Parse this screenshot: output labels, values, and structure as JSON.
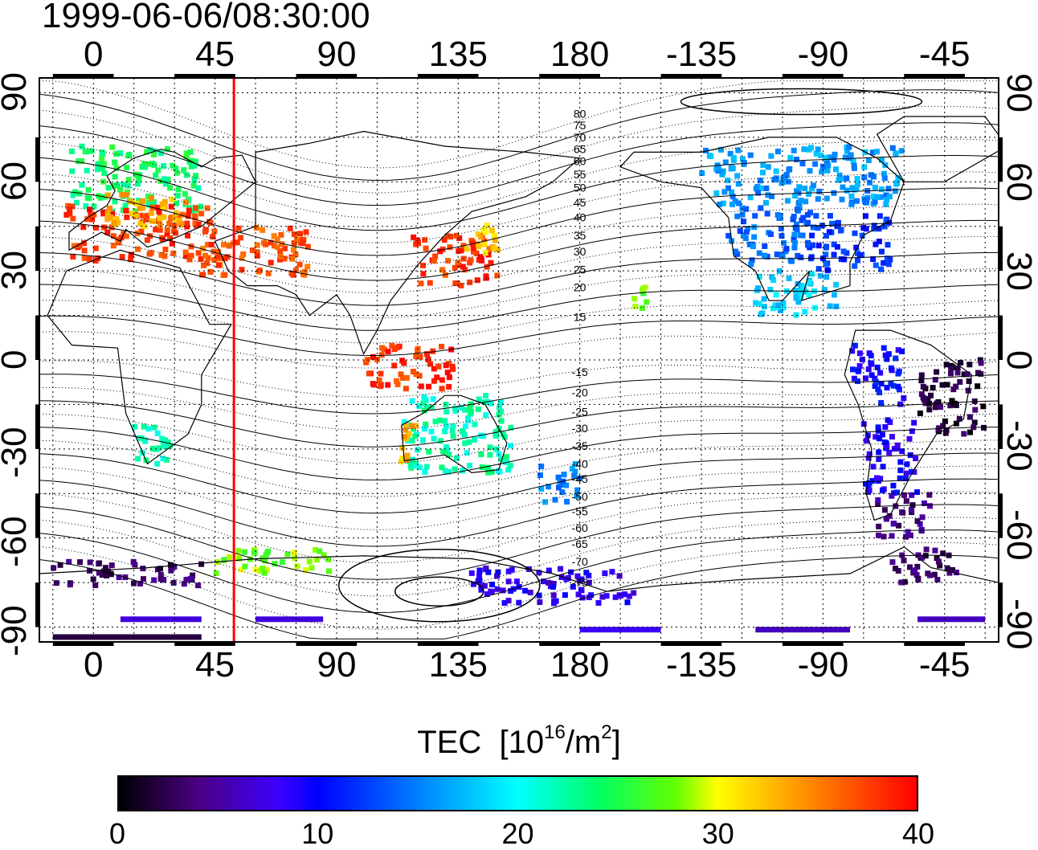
{
  "title": "1999-06-06/08:30:00",
  "axes": {
    "top_ticks": [
      {
        "lon": 0,
        "label": "0"
      },
      {
        "lon": 45,
        "label": "45"
      },
      {
        "lon": 90,
        "label": "90"
      },
      {
        "lon": 135,
        "label": "135"
      },
      {
        "lon": 180,
        "label": "180"
      },
      {
        "lon": 225,
        "label": "-135"
      },
      {
        "lon": 270,
        "label": "-90"
      },
      {
        "lon": 315,
        "label": "-45"
      }
    ],
    "bottom_ticks": [
      {
        "lon": 0,
        "label": "0"
      },
      {
        "lon": 45,
        "label": "45"
      },
      {
        "lon": 90,
        "label": "90"
      },
      {
        "lon": 135,
        "label": "135"
      },
      {
        "lon": 180,
        "label": "180"
      },
      {
        "lon": 225,
        "label": "-135"
      },
      {
        "lon": 270,
        "label": "-90"
      },
      {
        "lon": 315,
        "label": "-45"
      }
    ],
    "left_ticks": [
      {
        "lat": 90,
        "label": "90"
      },
      {
        "lat": 60,
        "label": "60"
      },
      {
        "lat": 30,
        "label": "30"
      },
      {
        "lat": 0,
        "label": "0"
      },
      {
        "lat": -30,
        "label": "-30"
      },
      {
        "lat": -60,
        "label": "-60"
      },
      {
        "lat": -90,
        "label": "-90"
      }
    ],
    "right_ticks": [
      {
        "lat": 90,
        "label": "90"
      },
      {
        "lat": 60,
        "label": "60"
      },
      {
        "lat": 30,
        "label": "30"
      },
      {
        "lat": 0,
        "label": "0"
      },
      {
        "lat": -30,
        "label": "-30"
      },
      {
        "lat": -60,
        "label": "-60"
      },
      {
        "lat": -90,
        "label": "-90"
      }
    ],
    "lon_range": [
      -20,
      335
    ],
    "lat_range": [
      -95,
      95
    ]
  },
  "meridian_line": {
    "lon": 52,
    "color": "#ff0000"
  },
  "magnetic_latitude_labels": [
    {
      "label": "80",
      "lat": 83
    },
    {
      "label": "75",
      "lat": 79
    },
    {
      "label": "70",
      "lat": 75
    },
    {
      "label": "65",
      "lat": 71
    },
    {
      "label": "60",
      "lat": 67
    },
    {
      "label": "55",
      "lat": 62.5
    },
    {
      "label": "50",
      "lat": 58
    },
    {
      "label": "45",
      "lat": 53
    },
    {
      "label": "40",
      "lat": 48
    },
    {
      "label": "35",
      "lat": 42
    },
    {
      "label": "30",
      "lat": 36.5
    },
    {
      "label": "25",
      "lat": 30.5
    },
    {
      "label": "20",
      "lat": 24.5
    },
    {
      "label": "15",
      "lat": 14.5
    },
    {
      "label": "-15",
      "lat": -4
    },
    {
      "label": "-20",
      "lat": -11
    },
    {
      "label": "-25",
      "lat": -17.5
    },
    {
      "label": "-30",
      "lat": -23
    },
    {
      "label": "-35",
      "lat": -29
    },
    {
      "label": "-40",
      "lat": -35
    },
    {
      "label": "-45",
      "lat": -40
    },
    {
      "label": "-50",
      "lat": -46
    },
    {
      "label": "-55",
      "lat": -51
    },
    {
      "label": "-60",
      "lat": -56.5
    },
    {
      "label": "-65",
      "lat": -62
    },
    {
      "label": "-70",
      "lat": -68
    },
    {
      "label": "-75",
      "lat": -75
    }
  ],
  "colorbar": {
    "label": "TEC",
    "unit_prefix": "[10",
    "unit_exp1": "16",
    "unit_mid": "/m",
    "unit_exp2": "2",
    "unit_suffix": "]",
    "min": 0,
    "max": 40,
    "ticks": [
      {
        "value": 0,
        "label": "0"
      },
      {
        "value": 10,
        "label": "10"
      },
      {
        "value": 20,
        "label": "20"
      },
      {
        "value": 30,
        "label": "30"
      },
      {
        "value": 40,
        "label": "40"
      }
    ]
  },
  "tec_regions": [
    {
      "name": "europe-north",
      "lon": [
        -8,
        40
      ],
      "lat": [
        50,
        72
      ],
      "tec": 24
    },
    {
      "name": "europe-south",
      "lon": [
        -10,
        45
      ],
      "lat": [
        33,
        52
      ],
      "tec": 38
    },
    {
      "name": "europe-mid",
      "lon": [
        5,
        35
      ],
      "lat": [
        45,
        56
      ],
      "tec": 33
    },
    {
      "name": "middle-east",
      "lon": [
        40,
        80
      ],
      "lat": [
        28,
        45
      ],
      "tec": 37
    },
    {
      "name": "east-asia",
      "lon": [
        118,
        150
      ],
      "lat": [
        25,
        42
      ],
      "tec": 38
    },
    {
      "name": "japan",
      "lon": [
        138,
        150
      ],
      "lat": [
        36,
        47
      ],
      "tec": 32
    },
    {
      "name": "north-america-east",
      "lon": [
        265,
        295
      ],
      "lat": [
        30,
        50
      ],
      "tec": 12
    },
    {
      "name": "north-america-west",
      "lon": [
        235,
        265
      ],
      "lat": [
        32,
        52
      ],
      "tec": 14
    },
    {
      "name": "canada",
      "lon": [
        225,
        300
      ],
      "lat": [
        52,
        72
      ],
      "tec": 16
    },
    {
      "name": "mexico",
      "lon": [
        245,
        275
      ],
      "lat": [
        15,
        30
      ],
      "tec": 18
    },
    {
      "name": "hawaii",
      "lon": [
        200,
        205
      ],
      "lat": [
        17,
        25
      ],
      "tec": 27
    },
    {
      "name": "south-america-north",
      "lon": [
        280,
        300
      ],
      "lat": [
        -15,
        5
      ],
      "tec": 10
    },
    {
      "name": "brazil",
      "lon": [
        305,
        330
      ],
      "lat": [
        -25,
        0
      ],
      "tec": 2
    },
    {
      "name": "south-america-south",
      "lon": [
        285,
        305
      ],
      "lat": [
        -45,
        -20
      ],
      "tec": 9
    },
    {
      "name": "patagonia",
      "lon": [
        290,
        310
      ],
      "lat": [
        -60,
        -45
      ],
      "tec": 4
    },
    {
      "name": "antarctic-peninsula",
      "lon": [
        295,
        320
      ],
      "lat": [
        -75,
        -63
      ],
      "tec": 3
    },
    {
      "name": "australia",
      "lon": [
        115,
        155
      ],
      "lat": [
        -38,
        -12
      ],
      "tec": 22
    },
    {
      "name": "australia-west",
      "lon": [
        112,
        120
      ],
      "lat": [
        -35,
        -22
      ],
      "tec": 33
    },
    {
      "name": "new-zealand",
      "lon": [
        165,
        180
      ],
      "lat": [
        -48,
        -35
      ],
      "tec": 15
    },
    {
      "name": "indonesia",
      "lon": [
        100,
        135
      ],
      "lat": [
        -10,
        5
      ],
      "tec": 38
    },
    {
      "name": "southern-africa",
      "lon": [
        15,
        32
      ],
      "lat": [
        -35,
        -22
      ],
      "tec": 22
    },
    {
      "name": "antarctica-indian",
      "lon": [
        45,
        90
      ],
      "lat": [
        -72,
        -64
      ],
      "tec": 28
    },
    {
      "name": "antarctica-coast",
      "lon": [
        -15,
        40
      ],
      "lat": [
        -76,
        -68
      ],
      "tec": 3
    },
    {
      "name": "antarctica-pacific",
      "lon": [
        140,
        200
      ],
      "lat": [
        -82,
        -70
      ],
      "tec": 8
    }
  ]
}
